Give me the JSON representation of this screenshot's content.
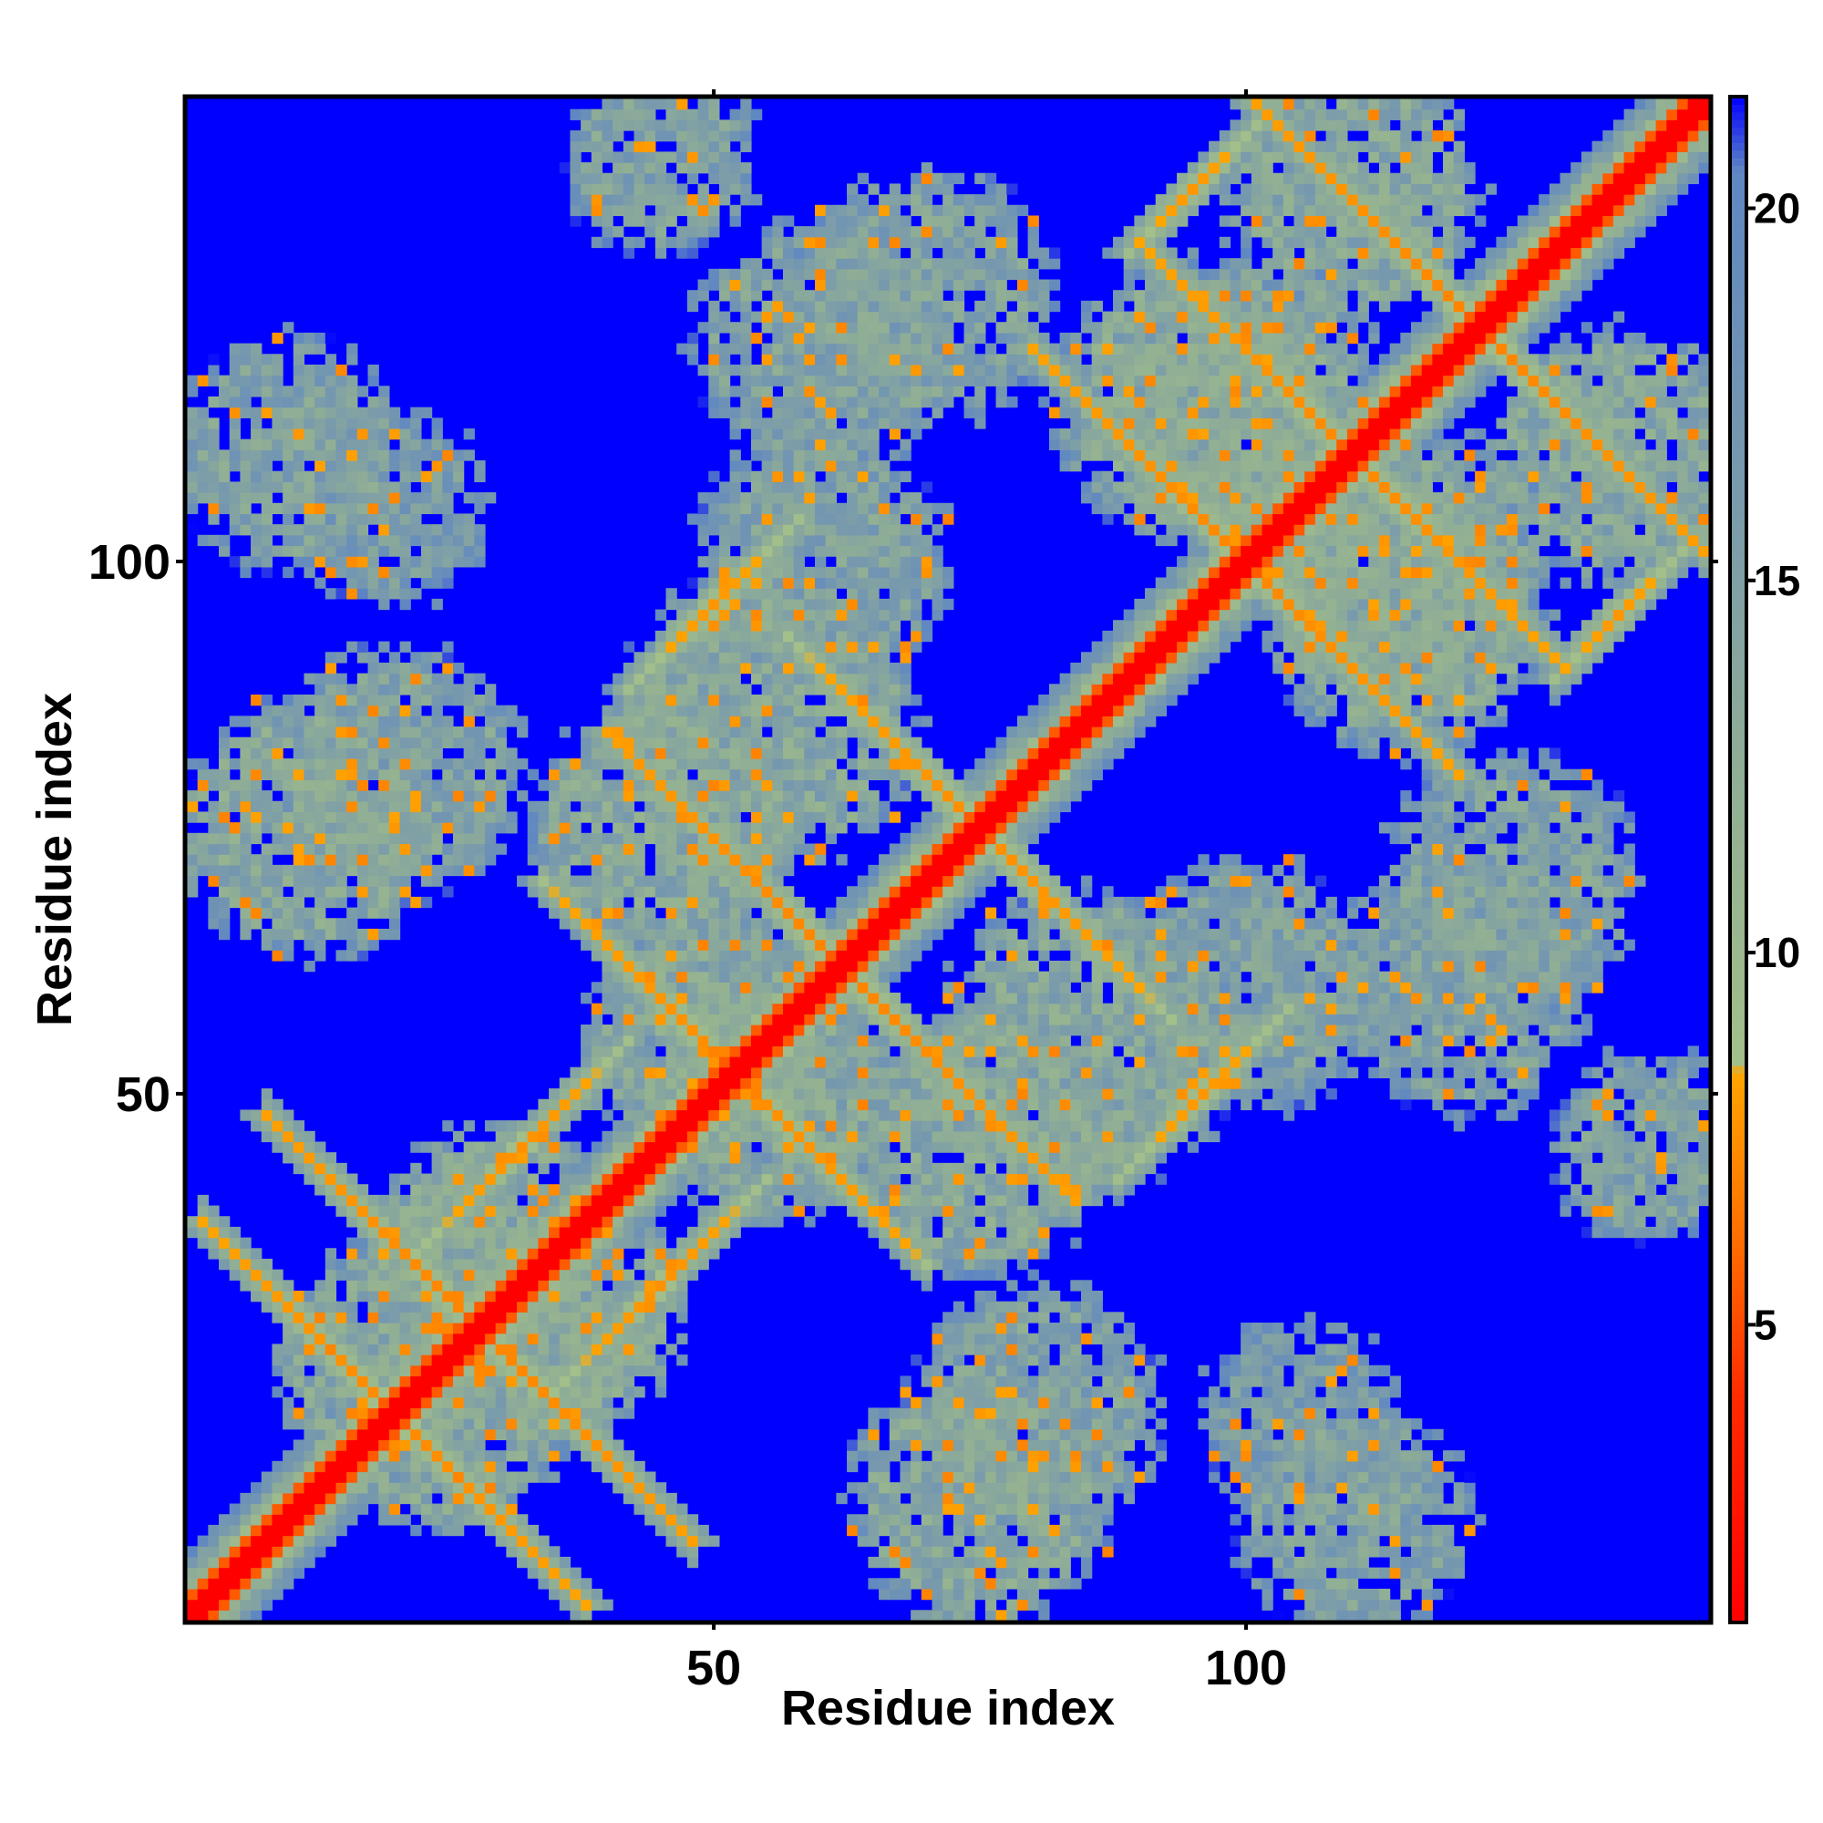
{
  "chart_data": {
    "type": "heatmap",
    "title": "",
    "xlabel": "Residue index",
    "ylabel": "Residue index",
    "n_residues": 143,
    "xlim": [
      1,
      143
    ],
    "ylim": [
      1,
      143
    ],
    "x_ticks": [
      {
        "value": 50,
        "label": "50"
      },
      {
        "value": 100,
        "label": "100"
      }
    ],
    "y_ticks": [
      {
        "value": 50,
        "label": "50"
      },
      {
        "value": 100,
        "label": "100"
      }
    ],
    "colorbar": {
      "min": 1,
      "max": 21.5,
      "ticks": [
        {
          "value": 5,
          "label": "5"
        },
        {
          "value": 10,
          "label": "10"
        },
        {
          "value": 15,
          "label": "15"
        },
        {
          "value": 20,
          "label": "20"
        }
      ],
      "stops": [
        {
          "value": 1,
          "color": "#ff0000"
        },
        {
          "value": 4,
          "color": "#ff2a00"
        },
        {
          "value": 6,
          "color": "#ff6a00"
        },
        {
          "value": 8.4,
          "color": "#ffa500"
        },
        {
          "value": 8.5,
          "color": "#a3bf8a"
        },
        {
          "value": 12,
          "color": "#92b093"
        },
        {
          "value": 16,
          "color": "#7a9bab"
        },
        {
          "value": 20.5,
          "color": "#5f87c2"
        },
        {
          "value": 21.5,
          "color": "#0000ff"
        }
      ]
    },
    "grid": false,
    "legend": "colorbar-right",
    "diagonal_value": 1,
    "background_value": 21.5,
    "contact_bands": [
      {
        "center": [
          20,
          20
        ],
        "dir": [
          1,
          -1
        ],
        "length": 18,
        "value": 7.2
      },
      {
        "center": [
          28,
          28
        ],
        "dir": [
          1,
          -1
        ],
        "length": 20,
        "value": 7.0
      },
      {
        "center": [
          52,
          52
        ],
        "dir": [
          1,
          -1
        ],
        "length": 18,
        "value": 7.3
      },
      {
        "center": [
          62,
          62
        ],
        "dir": [
          1,
          -1
        ],
        "length": 22,
        "value": 7.0
      },
      {
        "center": [
          75,
          75
        ],
        "dir": [
          1,
          -1
        ],
        "length": 18,
        "value": 7.4
      },
      {
        "center": [
          100,
          100
        ],
        "dir": [
          1,
          -1
        ],
        "length": 20,
        "value": 7.1
      },
      {
        "center": [
          110,
          110
        ],
        "dir": [
          1,
          -1
        ],
        "length": 20,
        "value": 7.2
      },
      {
        "center": [
          122,
          122
        ],
        "dir": [
          1,
          -1
        ],
        "length": 22,
        "value": 7.0
      },
      {
        "center": [
          45,
          32
        ],
        "dir": [
          1,
          1
        ],
        "length": 10,
        "value": 7.6
      },
      {
        "center": [
          96,
          50
        ],
        "dir": [
          1,
          1
        ],
        "length": 8,
        "value": 7.8
      },
      {
        "center": [
          135,
          95
        ],
        "dir": [
          1,
          1
        ],
        "length": 6,
        "value": 7.8
      }
    ],
    "clusters": [
      {
        "center": [
          10,
          110
        ],
        "radius": 9,
        "value": 12
      },
      {
        "center": [
          12,
          75
        ],
        "radius": 10,
        "value": 11
      },
      {
        "center": [
          25,
          20
        ],
        "radius": 9,
        "value": 11
      },
      {
        "center": [
          35,
          30
        ],
        "radius": 10,
        "value": 11
      },
      {
        "center": [
          50,
          55
        ],
        "radius": 10,
        "value": 11
      },
      {
        "center": [
          55,
          85
        ],
        "radius": 12,
        "value": 11
      },
      {
        "center": [
          60,
          120
        ],
        "radius": 10,
        "value": 12
      },
      {
        "center": [
          75,
          45
        ],
        "radius": 10,
        "value": 11
      },
      {
        "center": [
          80,
          20
        ],
        "radius": 10,
        "value": 12
      },
      {
        "center": [
          95,
          115
        ],
        "radius": 11,
        "value": 11
      },
      {
        "center": [
          100,
          60
        ],
        "radius": 10,
        "value": 12
      },
      {
        "center": [
          105,
          20
        ],
        "radius": 7,
        "value": 13
      },
      {
        "center": [
          115,
          100
        ],
        "radius": 11,
        "value": 11
      },
      {
        "center": [
          125,
          70
        ],
        "radius": 10,
        "value": 12
      },
      {
        "center": [
          135,
          110
        ],
        "radius": 10,
        "value": 11
      },
      {
        "center": [
          138,
          45
        ],
        "radius": 7,
        "value": 12
      }
    ],
    "local_contact_halfwidth": 6
  }
}
